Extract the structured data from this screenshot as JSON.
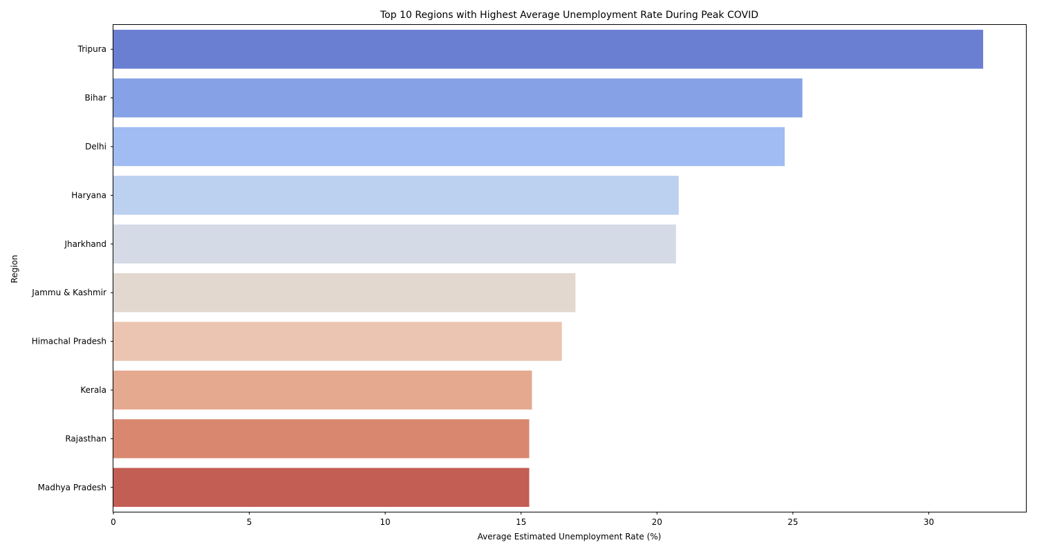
{
  "chart_data": {
    "type": "bar",
    "orientation": "horizontal",
    "title": "Top 10 Regions with Highest Average Unemployment Rate During Peak COVID",
    "xlabel": "Average Estimated Unemployment Rate (%)",
    "ylabel": "Region",
    "xlim": [
      0,
      33.6
    ],
    "xticks": [
      0,
      5,
      10,
      15,
      20,
      25,
      30
    ],
    "grid": false,
    "categories": [
      "Tripura",
      "Bihar",
      "Delhi",
      "Haryana",
      "Jharkhand",
      "Jammu & Kashmir",
      "Himachal Pradesh",
      "Kerala",
      "Rajasthan",
      "Madhya Pradesh"
    ],
    "values": [
      32.0,
      25.35,
      24.7,
      20.8,
      20.7,
      17.0,
      16.5,
      15.4,
      15.3,
      15.3
    ],
    "colors": [
      "#6a7fd2",
      "#86a1e5",
      "#a1bcf2",
      "#bcd0f0",
      "#d4dbe6",
      "#e3d8cf",
      "#ebc5b1",
      "#e5a98f",
      "#d9876f",
      "#c35e54"
    ]
  }
}
